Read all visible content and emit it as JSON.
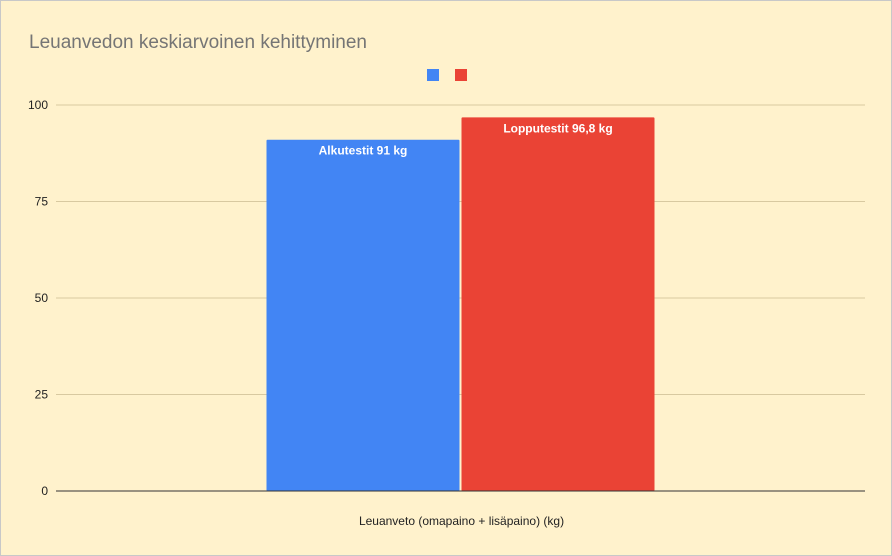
{
  "chart_data": {
    "type": "bar",
    "title": "Leuanvedon keskiarvoinen kehittyminen",
    "categories": [
      "Leuanveto (omapaino + lisäpaino) (kg)"
    ],
    "series": [
      {
        "color": "#4285f4",
        "values": [
          91
        ],
        "data_labels": [
          "Alkutestit 91 kg"
        ]
      },
      {
        "color": "#ea4335",
        "values": [
          96.8
        ],
        "data_labels": [
          "Lopputestit 96,8 kg"
        ]
      }
    ],
    "yticks": [
      "0",
      "25",
      "50",
      "75",
      "100"
    ],
    "ylim": [
      0,
      100
    ],
    "grid": true,
    "legend": "top-center"
  }
}
